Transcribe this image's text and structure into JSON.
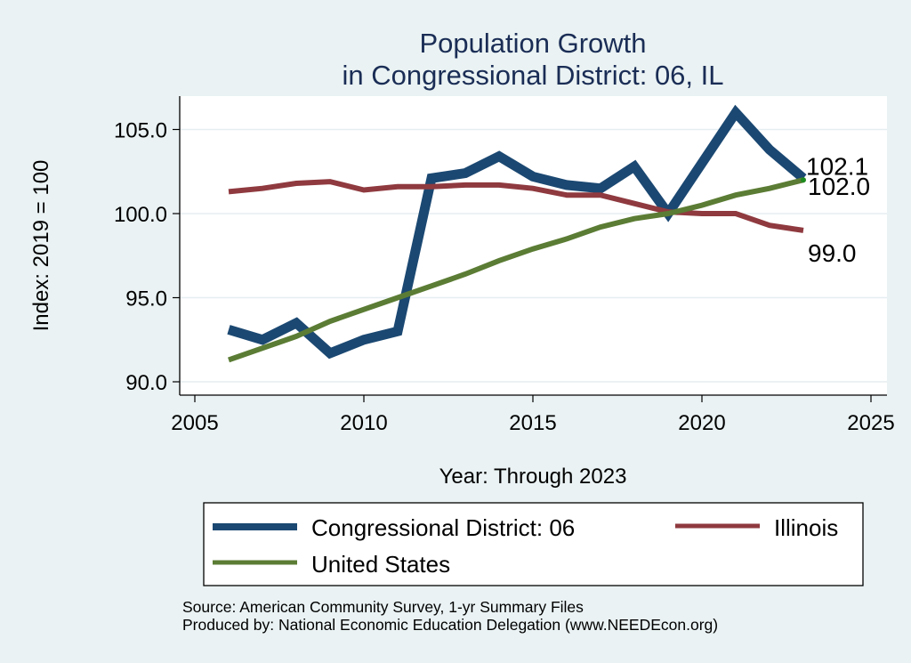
{
  "chart_data": {
    "type": "line",
    "title": [
      "Population Growth",
      "in Congressional District: 06, IL"
    ],
    "xlabel": "Year: Through 2023",
    "ylabel": "Index: 2019 = 100",
    "xlim": [
      2004.5,
      2025.5
    ],
    "ylim": [
      89.4,
      106.9
    ],
    "xticks": [
      2005,
      2010,
      2015,
      2020,
      2025
    ],
    "xtick_labels": [
      "2005",
      "2010",
      "2015",
      "2020",
      "2025"
    ],
    "yticks": [
      90,
      95,
      100,
      105
    ],
    "ytick_labels": [
      "90.0",
      "95.0",
      "100.0",
      "105.0"
    ],
    "grid": true,
    "x": [
      2006,
      2007,
      2008,
      2009,
      2010,
      2011,
      2012,
      2013,
      2014,
      2015,
      2016,
      2017,
      2018,
      2019,
      2020,
      2021,
      2022,
      2023
    ],
    "series": [
      {
        "name": "Congressional District: 06",
        "color": "#1b4872",
        "values": [
          93.1,
          92.5,
          93.5,
          91.7,
          92.5,
          93.0,
          102.1,
          102.4,
          103.4,
          102.2,
          101.7,
          101.5,
          102.8,
          100.0,
          103.0,
          106.0,
          103.8,
          102.1
        ],
        "end_label": "102.1"
      },
      {
        "name": "Illinois",
        "color": "#8f3a3f",
        "values": [
          101.3,
          101.5,
          101.8,
          101.9,
          101.4,
          101.6,
          101.6,
          101.7,
          101.7,
          101.5,
          101.1,
          101.1,
          100.6,
          100.1,
          100.0,
          100.0,
          99.3,
          99.0
        ],
        "end_label": "99.0"
      },
      {
        "name": "United States",
        "color": "#5b7c34",
        "values": [
          91.3,
          92.0,
          92.7,
          93.6,
          94.3,
          95.0,
          95.7,
          96.4,
          97.2,
          97.9,
          98.5,
          99.2,
          99.7,
          100.0,
          100.5,
          101.1,
          101.5,
          102.0
        ],
        "end_label": "102.0"
      }
    ],
    "legend": {
      "placement": "bottom",
      "entries": [
        "Congressional District: 06",
        "Illinois",
        "United States"
      ]
    },
    "notes": [
      "Source: American Community Survey, 1-yr Summary Files",
      "Produced by: National Economic Education Delegation (www.NEEDEcon.org)"
    ]
  }
}
